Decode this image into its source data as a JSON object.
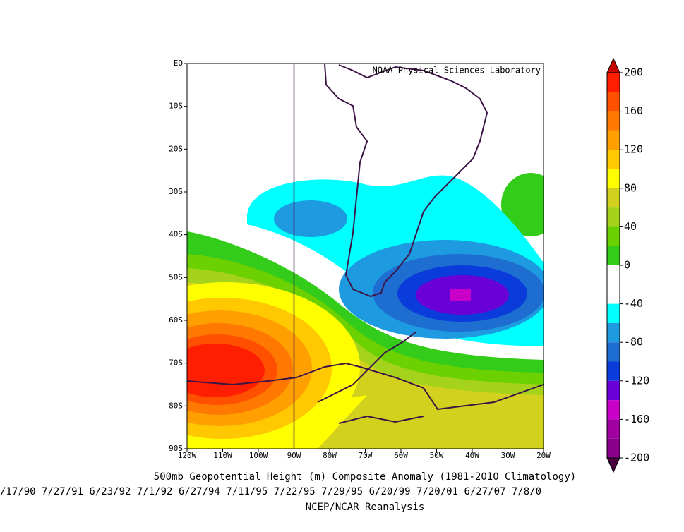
{
  "map": {
    "credit": "NOAA Physical Sciences Laboratory",
    "xticks": [
      "120W",
      "110W",
      "100W",
      "90W",
      "80W",
      "70W",
      "60W",
      "50W",
      "40W",
      "30W",
      "20W"
    ],
    "yticks": [
      "EQ",
      "10S",
      "20S",
      "30S",
      "40S",
      "50S",
      "60S",
      "70S",
      "80S",
      "90S"
    ]
  },
  "colorbar": {
    "ticks": [
      200,
      160,
      120,
      80,
      40,
      0,
      -40,
      -80,
      -120,
      -160,
      -200
    ],
    "colors": [
      "#c80000",
      "#ff1e00",
      "#ff5000",
      "#ff7800",
      "#ffa000",
      "#ffc800",
      "#ffff00",
      "#d2d21e",
      "#a5d21a",
      "#6cd100",
      "#33cc1a",
      "#ffffff",
      "#ffffff",
      "#00ffff",
      "#1e9ae0",
      "#1e6ed2",
      "#0a3cdc",
      "#6a00d8",
      "#c800c8",
      "#a0009f",
      "#8b008b",
      "#4b0040"
    ]
  },
  "title": "500mb Geopotential Height (m) Composite Anomaly (1981-2010 Climatology)",
  "dates": "/17/90 7/27/91 6/23/92 7/1/92 6/27/94 7/11/95 7/22/95 7/29/95 6/20/99 7/20/01 6/27/07 7/8/0",
  "source": "NCEP/NCAR Reanalysis"
}
